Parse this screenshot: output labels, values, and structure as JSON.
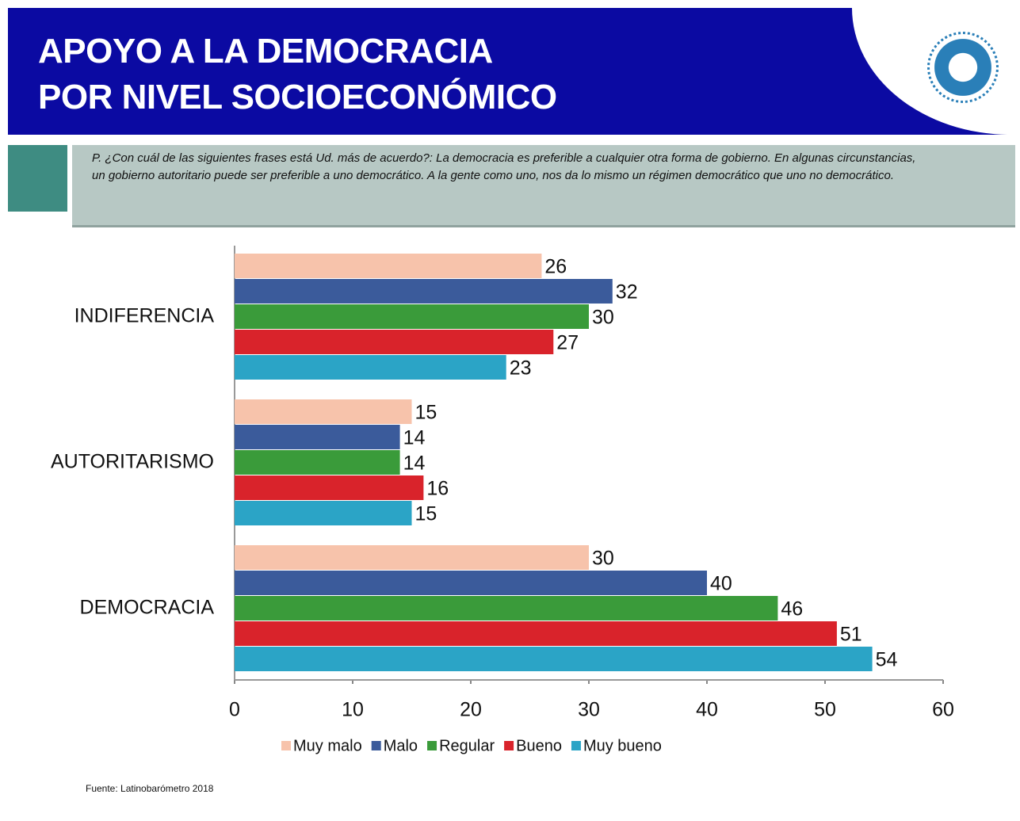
{
  "chart_data": {
    "type": "bar",
    "orientation": "horizontal",
    "title": "APOYO A LA DEMOCRACIA",
    "subtitle": "POR NIVEL SOCIOECONÓMICO",
    "question": "P. ¿Con cuál de las siguientes frases está Ud. más de acuerdo?: La democracia es preferible a cualquier otra forma de gobierno. En algunas circunstancias, un gobierno autoritario puede ser preferible a uno democrático. A la gente como uno, nos da lo mismo un régimen democrático que uno no democrático.",
    "source": "Fuente: Latinobarómetro 2018",
    "categories": [
      "INDIFERENCIA",
      "AUTORITARISMO",
      "DEMOCRACIA"
    ],
    "series": [
      {
        "name": "Muy malo",
        "color": "#f7c3ab",
        "values": [
          26,
          15,
          30
        ]
      },
      {
        "name": "Malo",
        "color": "#3b5b9b",
        "values": [
          32,
          14,
          40
        ]
      },
      {
        "name": "Regular",
        "color": "#3a9b3a",
        "values": [
          30,
          14,
          46
        ]
      },
      {
        "name": "Bueno",
        "color": "#d9232b",
        "values": [
          27,
          16,
          51
        ]
      },
      {
        "name": "Muy bueno",
        "color": "#2ba4c6",
        "values": [
          23,
          15,
          54
        ]
      }
    ],
    "xlim": [
      0,
      60
    ],
    "xticks": [
      0,
      10,
      20,
      30,
      40,
      50,
      60
    ],
    "legend": "bottom"
  }
}
